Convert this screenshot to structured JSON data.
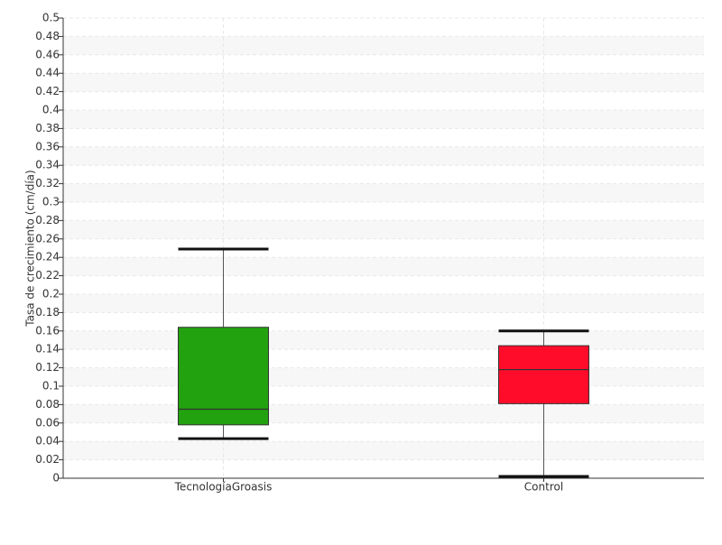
{
  "chart_data": {
    "type": "box",
    "y_label": "Tasa de crecimiento (cm/día)",
    "categories": [
      "TecnologíaGroasis",
      "Control"
    ],
    "boxes": [
      {
        "min": 0.043,
        "q1": 0.058,
        "median": 0.075,
        "q3": 0.164,
        "max": 0.249,
        "color": "#22a20f"
      },
      {
        "min": 0.002,
        "q1": 0.081,
        "median": 0.118,
        "q3": 0.144,
        "max": 0.16,
        "color": "#ff0c2a"
      }
    ],
    "ylim": [
      0,
      0.5
    ],
    "yticks": [
      0,
      0.02,
      0.04,
      0.06,
      0.08,
      0.1,
      0.12,
      0.14,
      0.16,
      0.18,
      0.2,
      0.22,
      0.24,
      0.26,
      0.28,
      0.3,
      0.32,
      0.34,
      0.36,
      0.38,
      0.4,
      0.42,
      0.44,
      0.46,
      0.48,
      0.5
    ],
    "grid": true
  }
}
